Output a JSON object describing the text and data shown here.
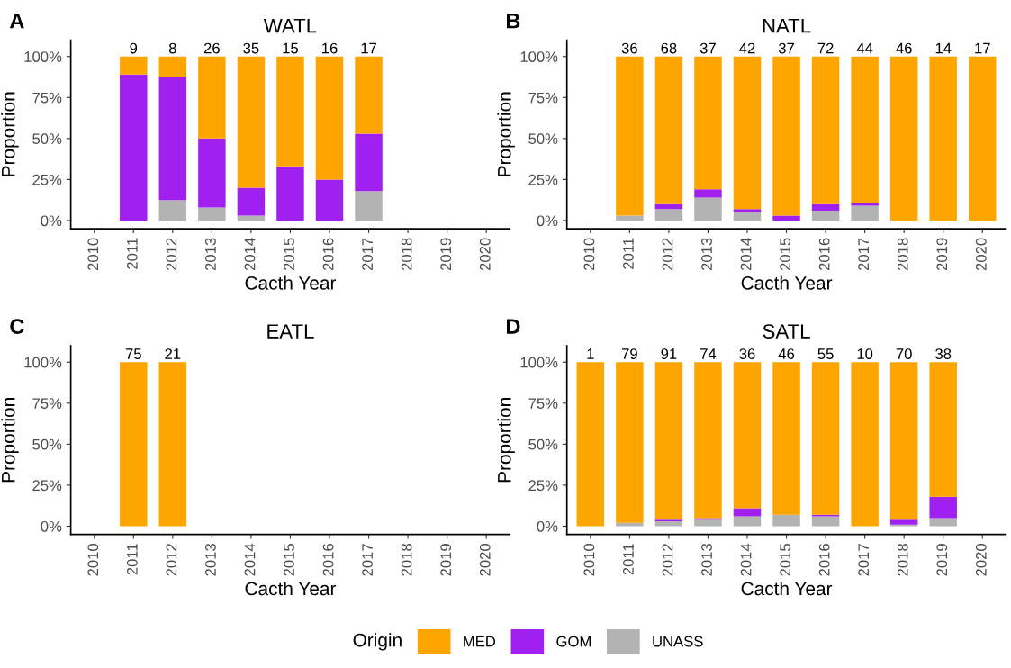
{
  "chart_data": [
    {
      "type": "bar",
      "title": "WATL",
      "xlabel": "Cacth Year",
      "ylabel": "Proportion",
      "stacked": true,
      "legend": "bottom",
      "legend_title": "Origin",
      "annotations": [
        "A",
        {
          "text": "9",
          "x": "2011",
          "y": 100
        },
        {
          "text": "8",
          "x": "2012",
          "y": 100
        },
        {
          "text": "26",
          "x": "2013",
          "y": 100
        },
        {
          "text": "35",
          "x": "2014",
          "y": 100
        },
        {
          "text": "15",
          "x": "2015",
          "y": 100
        },
        {
          "text": "16",
          "x": "2016",
          "y": 100
        },
        {
          "text": "17",
          "x": "2017",
          "y": 100
        }
      ],
      "categories": [
        "2010",
        "2011",
        "2012",
        "2013",
        "2014",
        "2015",
        "2016",
        "2017",
        "2018",
        "2019",
        "2020"
      ],
      "series": [
        {
          "name": "UNASS",
          "color": "#b3b3b3",
          "values": [
            null,
            0,
            12.5,
            8,
            3,
            0,
            0,
            18,
            null,
            null,
            null
          ]
        },
        {
          "name": "GOM",
          "color": "#a020f0",
          "values": [
            null,
            89,
            75,
            42,
            17,
            33,
            25,
            35,
            null,
            null,
            null
          ]
        },
        {
          "name": "MED",
          "color": "#ffa500",
          "values": [
            null,
            11,
            12.5,
            50,
            80,
            67,
            75,
            47,
            null,
            null,
            null
          ]
        }
      ],
      "ylim": [
        -5,
        110
      ],
      "yticks": [
        {
          "value": 0,
          "label": "0%"
        },
        {
          "value": 25,
          "label": "25%"
        },
        {
          "value": 50,
          "label": "50%"
        },
        {
          "value": 75,
          "label": "75%"
        },
        {
          "value": 100,
          "label": "100%"
        }
      ]
    },
    {
      "type": "bar",
      "title": "NATL",
      "xlabel": "Cacth Year",
      "ylabel": "Proportion",
      "stacked": true,
      "annotations": [
        "B",
        {
          "text": "36",
          "x": "2011",
          "y": 100
        },
        {
          "text": "68",
          "x": "2012",
          "y": 100
        },
        {
          "text": "37",
          "x": "2013",
          "y": 100
        },
        {
          "text": "42",
          "x": "2014",
          "y": 100
        },
        {
          "text": "37",
          "x": "2015",
          "y": 100
        },
        {
          "text": "72",
          "x": "2016",
          "y": 100
        },
        {
          "text": "44",
          "x": "2017",
          "y": 100
        },
        {
          "text": "46",
          "x": "2018",
          "y": 100
        },
        {
          "text": "14",
          "x": "2019",
          "y": 100
        },
        {
          "text": "17",
          "x": "2020",
          "y": 100
        }
      ],
      "categories": [
        "2010",
        "2011",
        "2012",
        "2013",
        "2014",
        "2015",
        "2016",
        "2017",
        "2018",
        "2019",
        "2020"
      ],
      "series": [
        {
          "color": "#b3b3b3",
          "values": [
            null,
            3,
            7,
            14,
            5,
            0,
            6,
            9,
            0,
            0,
            0
          ]
        },
        {
          "color": "#a020f0",
          "values": [
            null,
            0,
            3,
            5,
            2,
            3,
            4,
            2,
            0,
            0,
            0
          ]
        },
        {
          "color": "#ffa500",
          "values": [
            null,
            97,
            90,
            81,
            93,
            97,
            90,
            89,
            100,
            100,
            100
          ]
        }
      ],
      "ylim": [
        -5,
        110
      ],
      "yticks": [
        {
          "value": 0,
          "label": "0%"
        },
        {
          "value": 25,
          "label": "25%"
        },
        {
          "value": 50,
          "label": "50%"
        },
        {
          "value": 75,
          "label": "75%"
        },
        {
          "value": 100,
          "label": "100%"
        }
      ]
    },
    {
      "type": "bar",
      "title": "EATL",
      "xlabel": "Cacth Year",
      "ylabel": "Proportion",
      "stacked": true,
      "annotations": [
        "C",
        {
          "text": "75",
          "x": "2011",
          "y": 100
        },
        {
          "text": "21",
          "x": "2012",
          "y": 100
        }
      ],
      "categories": [
        "2010",
        "2011",
        "2012",
        "2013",
        "2014",
        "2015",
        "2016",
        "2017",
        "2018",
        "2019",
        "2020"
      ],
      "series": [
        {
          "color": "#b3b3b3",
          "values": [
            null,
            0,
            0,
            null,
            null,
            null,
            null,
            null,
            null,
            null,
            null
          ]
        },
        {
          "color": "#a020f0",
          "values": [
            null,
            0,
            0,
            null,
            null,
            null,
            null,
            null,
            null,
            null,
            null
          ]
        },
        {
          "color": "#ffa500",
          "values": [
            null,
            100,
            100,
            null,
            null,
            null,
            null,
            null,
            null,
            null,
            null
          ]
        }
      ],
      "ylim": [
        -5,
        110
      ],
      "yticks": [
        {
          "value": 0,
          "label": "0%"
        },
        {
          "value": 25,
          "label": "25%"
        },
        {
          "value": 50,
          "label": "50%"
        },
        {
          "value": 75,
          "label": "75%"
        },
        {
          "value": 100,
          "label": "100%"
        }
      ]
    },
    {
      "type": "bar",
      "title": "SATL",
      "xlabel": "Cacth Year",
      "ylabel": "Proportion",
      "stacked": true,
      "annotations": [
        "D",
        {
          "text": "1",
          "x": "2010",
          "y": 100
        },
        {
          "text": "79",
          "x": "2011",
          "y": 100
        },
        {
          "text": "91",
          "x": "2012",
          "y": 100
        },
        {
          "text": "74",
          "x": "2013",
          "y": 100
        },
        {
          "text": "36",
          "x": "2014",
          "y": 100
        },
        {
          "text": "46",
          "x": "2015",
          "y": 100
        },
        {
          "text": "55",
          "x": "2016",
          "y": 100
        },
        {
          "text": "10",
          "x": "2017",
          "y": 100
        },
        {
          "text": "70",
          "x": "2018",
          "y": 100
        },
        {
          "text": "38",
          "x": "2019",
          "y": 100
        }
      ],
      "categories": [
        "2010",
        "2011",
        "2012",
        "2013",
        "2014",
        "2015",
        "2016",
        "2017",
        "2018",
        "2019",
        "2020"
      ],
      "series": [
        {
          "color": "#b3b3b3",
          "values": [
            0,
            2,
            3,
            4,
            6,
            7,
            6,
            0,
            1,
            5,
            null
          ]
        },
        {
          "color": "#a020f0",
          "values": [
            0,
            0,
            1,
            1,
            5,
            0,
            1,
            0,
            3,
            13,
            null
          ]
        },
        {
          "color": "#ffa500",
          "values": [
            100,
            98,
            96,
            95,
            89,
            93,
            93,
            100,
            96,
            82,
            null
          ]
        }
      ],
      "ylim": [
        -5,
        110
      ],
      "yticks": [
        {
          "value": 0,
          "label": "0%"
        },
        {
          "value": 25,
          "label": "25%"
        },
        {
          "value": 50,
          "label": "50%"
        },
        {
          "value": 75,
          "label": "75%"
        },
        {
          "value": 100,
          "label": "100%"
        }
      ]
    }
  ]
}
